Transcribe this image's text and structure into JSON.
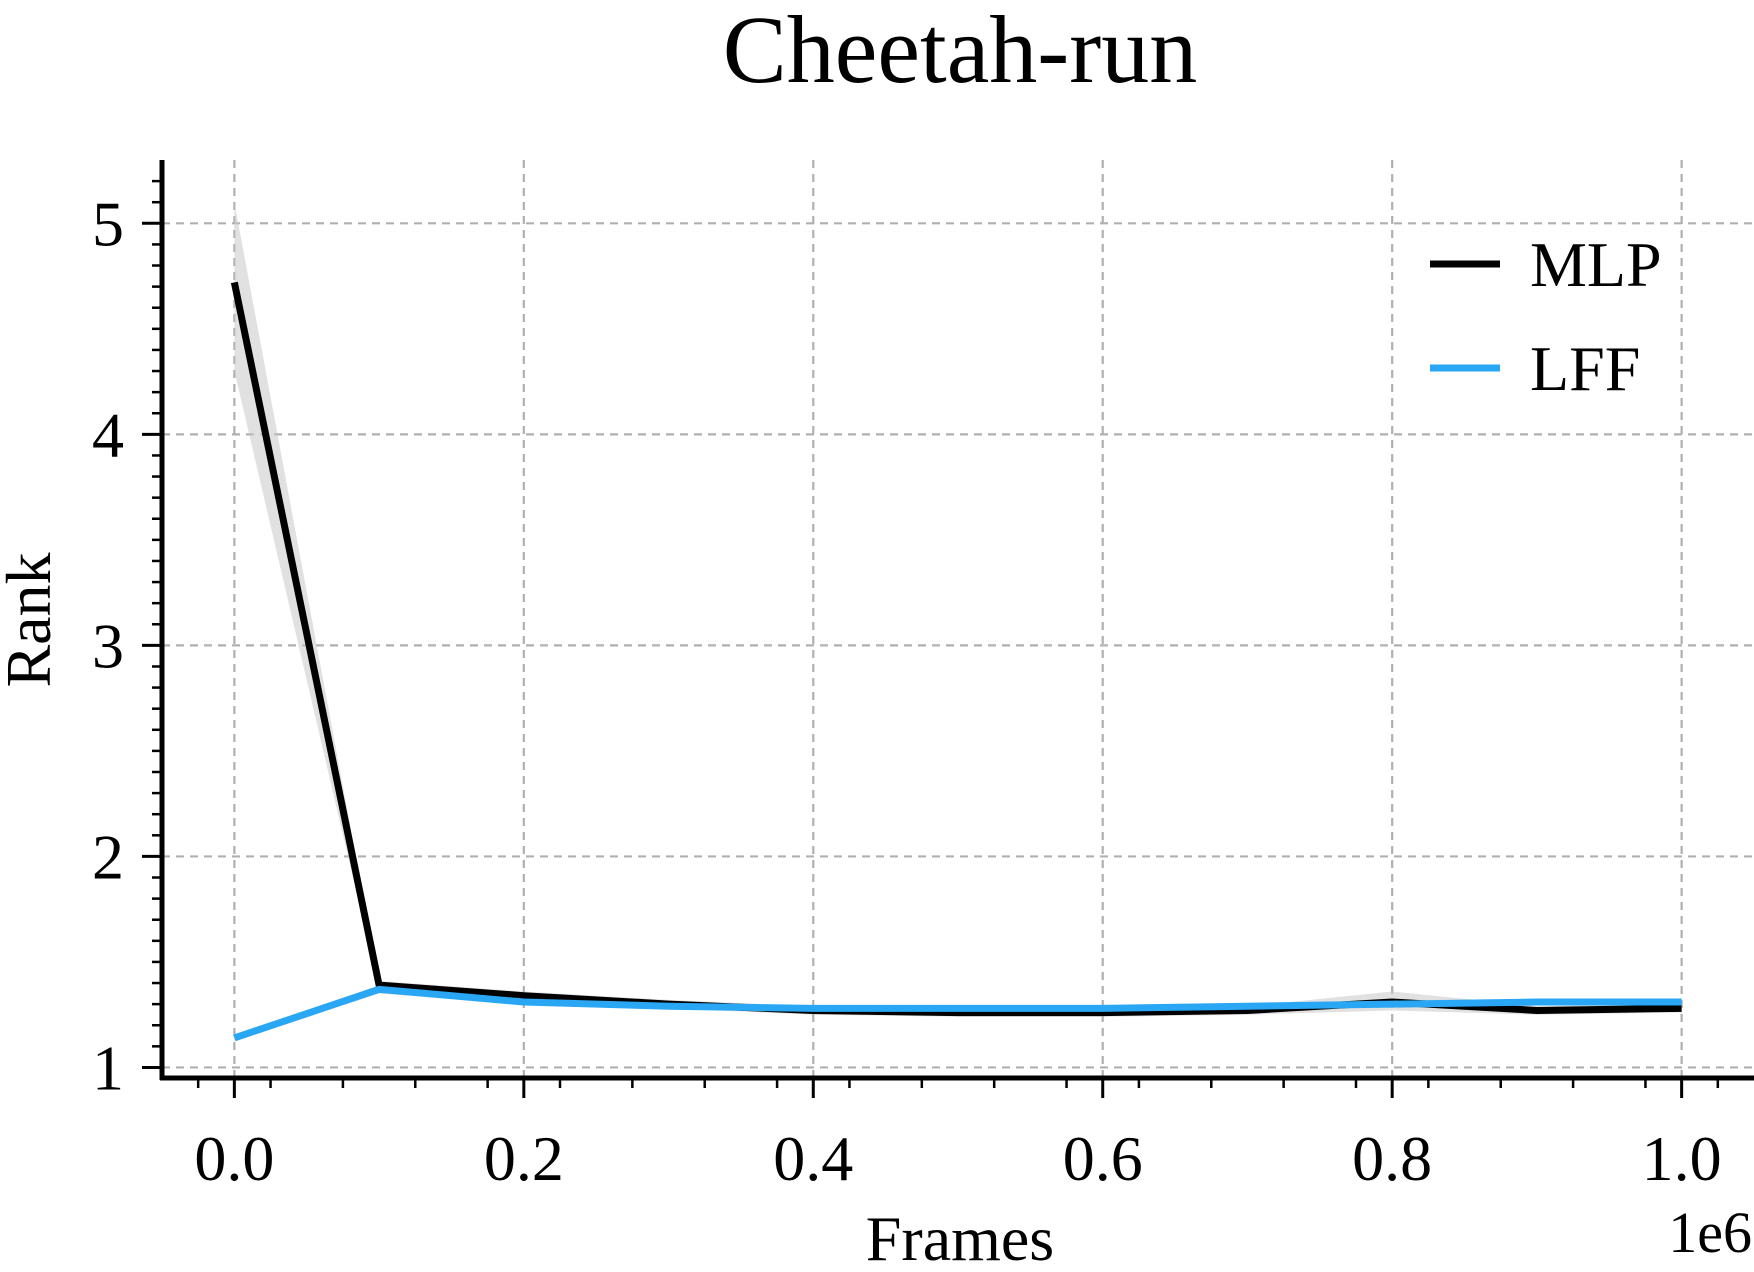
{
  "chart_data": {
    "type": "line",
    "title": "Cheetah-run",
    "xlabel": "Frames",
    "ylabel": "Rank",
    "x_offset_label": "1e6",
    "xlim": [
      -0.05,
      1.05
    ],
    "ylim": [
      0.95,
      5.3
    ],
    "x_ticks": [
      0.0,
      0.2,
      0.4,
      0.6,
      0.8,
      1.0
    ],
    "x_tick_labels": [
      "0.0",
      "0.2",
      "0.4",
      "0.6",
      "0.8",
      "1.0"
    ],
    "y_ticks": [
      1,
      2,
      3,
      4,
      5
    ],
    "y_tick_labels": [
      "1",
      "2",
      "3",
      "4",
      "5"
    ],
    "grid": true,
    "legend_position": "top-right",
    "x": [
      0.0,
      0.1,
      0.2,
      0.3,
      0.4,
      0.5,
      0.6,
      0.7,
      0.8,
      0.9,
      1.0
    ],
    "series": [
      {
        "name": "MLP",
        "color": "#000000",
        "values": [
          4.72,
          1.39,
          1.34,
          1.3,
          1.27,
          1.26,
          1.26,
          1.27,
          1.31,
          1.27,
          1.28
        ],
        "band_lower": [
          4.3,
          1.37,
          1.32,
          1.28,
          1.25,
          1.24,
          1.24,
          1.25,
          1.27,
          1.25,
          1.26
        ],
        "band_upper": [
          5.1,
          1.41,
          1.36,
          1.32,
          1.29,
          1.28,
          1.28,
          1.29,
          1.36,
          1.29,
          1.3
        ]
      },
      {
        "name": "LFF",
        "color": "#2aa7f4",
        "values": [
          1.14,
          1.37,
          1.31,
          1.29,
          1.28,
          1.28,
          1.28,
          1.29,
          1.3,
          1.31,
          1.31
        ],
        "band_lower": [
          1.13,
          1.35,
          1.3,
          1.28,
          1.27,
          1.27,
          1.27,
          1.28,
          1.29,
          1.3,
          1.3
        ],
        "band_upper": [
          1.15,
          1.39,
          1.32,
          1.3,
          1.29,
          1.29,
          1.29,
          1.3,
          1.31,
          1.32,
          1.32
        ]
      }
    ]
  }
}
